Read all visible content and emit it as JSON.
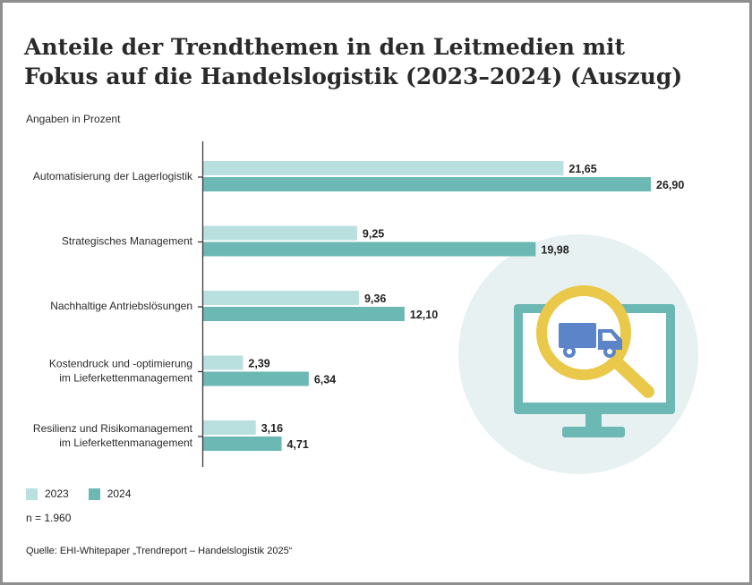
{
  "title": "Anteile der Trendthemen in den Leitmedien mit Fokus auf die Handelslogistik (2023–2024) (Auszug)",
  "unit_note": "Angaben in Prozent",
  "n_note": "n = 1.960",
  "source": "Quelle: EHI-Whitepaper „Trendreport – Handelslogistik 2025“",
  "colors": {
    "series_2023": "#b9dfdf",
    "series_2024": "#6cb8b4",
    "axis": "#3a3a3a",
    "illustration_circle": "#e8f1f1",
    "monitor": "#6cb8b4",
    "magnifier": "#eac84a",
    "truck": "#5b85c8"
  },
  "illustration": {
    "icons": [
      "monitor-icon",
      "magnifier-icon",
      "truck-icon"
    ]
  },
  "chart_data": {
    "type": "bar",
    "orientation": "horizontal",
    "categories": [
      [
        "Automatisierung der Lagerlogistik"
      ],
      [
        "Strategisches Management"
      ],
      [
        "Nachhaltige Antriebslösungen"
      ],
      [
        "Kostendruck und -optimierung",
        "im Lieferkettenmanagement"
      ],
      [
        "Resilienz und Risikomanagement",
        "im Lieferkettenmanagement"
      ]
    ],
    "series": [
      {
        "name": "2023",
        "values": [
          21.65,
          9.25,
          9.36,
          2.39,
          3.16
        ],
        "labels": [
          "21,65",
          "9,25",
          "9,36",
          "2,39",
          "3,16"
        ]
      },
      {
        "name": "2024",
        "values": [
          26.9,
          19.98,
          12.1,
          6.34,
          4.71
        ],
        "labels": [
          "26,90",
          "19,98",
          "12,10",
          "6,34",
          "4,71"
        ]
      }
    ],
    "xlim": [
      0,
      27
    ],
    "grid": false,
    "legend_position": "bottom-left"
  }
}
